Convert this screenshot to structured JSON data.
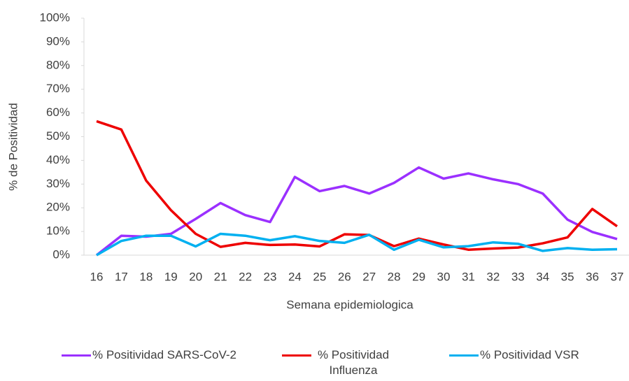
{
  "chart_data": {
    "type": "line",
    "x_label": "Semana epidemiologica",
    "y_label": "% de Positividad",
    "categories": [
      "16",
      "17",
      "18",
      "19",
      "20",
      "21",
      "22",
      "23",
      "24",
      "25",
      "26",
      "27",
      "28",
      "29",
      "30",
      "31",
      "32",
      "33",
      "34",
      "35",
      "36",
      "37"
    ],
    "series": [
      {
        "name": "% Positividad SARS-CoV-2",
        "color": "#9b30ff",
        "values": [
          0,
          8.2,
          7.8,
          9,
          15.3,
          22,
          16.9,
          14,
          33,
          27,
          29.2,
          26,
          30.5,
          37,
          32.3,
          34.5,
          32,
          30,
          26,
          15,
          9.8,
          6.8
        ]
      },
      {
        "name": "% Positividad Influenza",
        "color": "#ee0000",
        "values": [
          56.5,
          53,
          31.5,
          19,
          9,
          3.5,
          5.2,
          4.3,
          4.5,
          3.7,
          8.8,
          8.5,
          3.8,
          7,
          4.5,
          2.3,
          2.8,
          3.2,
          5,
          7.5,
          19.5,
          12.2
        ]
      },
      {
        "name": "% Positividad VSR",
        "color": "#00b0f0",
        "values": [
          0,
          6,
          8.2,
          8.2,
          3.7,
          9,
          8.2,
          6.3,
          8,
          6,
          5.2,
          8.6,
          2.3,
          6.5,
          3.3,
          3.8,
          5.4,
          4.8,
          1.8,
          3,
          2.3,
          2.5
        ]
      }
    ],
    "ylim": [
      0,
      100
    ],
    "yticks": [
      {
        "value": 0,
        "label": "0%"
      },
      {
        "value": 10,
        "label": "10%"
      },
      {
        "value": 20,
        "label": "20%"
      },
      {
        "value": 30,
        "label": "30%"
      },
      {
        "value": 40,
        "label": "40%"
      },
      {
        "value": 50,
        "label": "50%"
      },
      {
        "value": 60,
        "label": "60%"
      },
      {
        "value": 70,
        "label": "70%"
      },
      {
        "value": 80,
        "label": "80%"
      },
      {
        "value": 90,
        "label": "90%"
      },
      {
        "value": 100,
        "label": "100%"
      }
    ],
    "legend": "bottom"
  }
}
